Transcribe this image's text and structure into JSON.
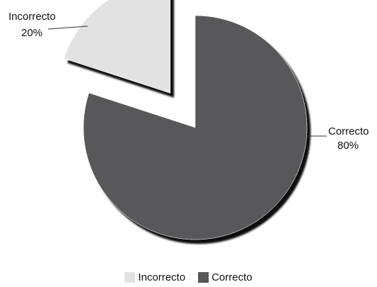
{
  "chart_data": {
    "type": "pie",
    "title": "",
    "slices": [
      {
        "label": "Incorrecto",
        "value": 20,
        "value_label": "20%",
        "color": "#e2e2e2",
        "exploded": true
      },
      {
        "label": "Correcto",
        "value": 80,
        "value_label": "80%",
        "color": "#58585a",
        "exploded": false
      }
    ],
    "legend": {
      "position": "bottom",
      "items": [
        {
          "label": "Incorrecto",
          "color": "#e2e2e2"
        },
        {
          "label": "Correcto",
          "color": "#58585a"
        }
      ]
    }
  }
}
